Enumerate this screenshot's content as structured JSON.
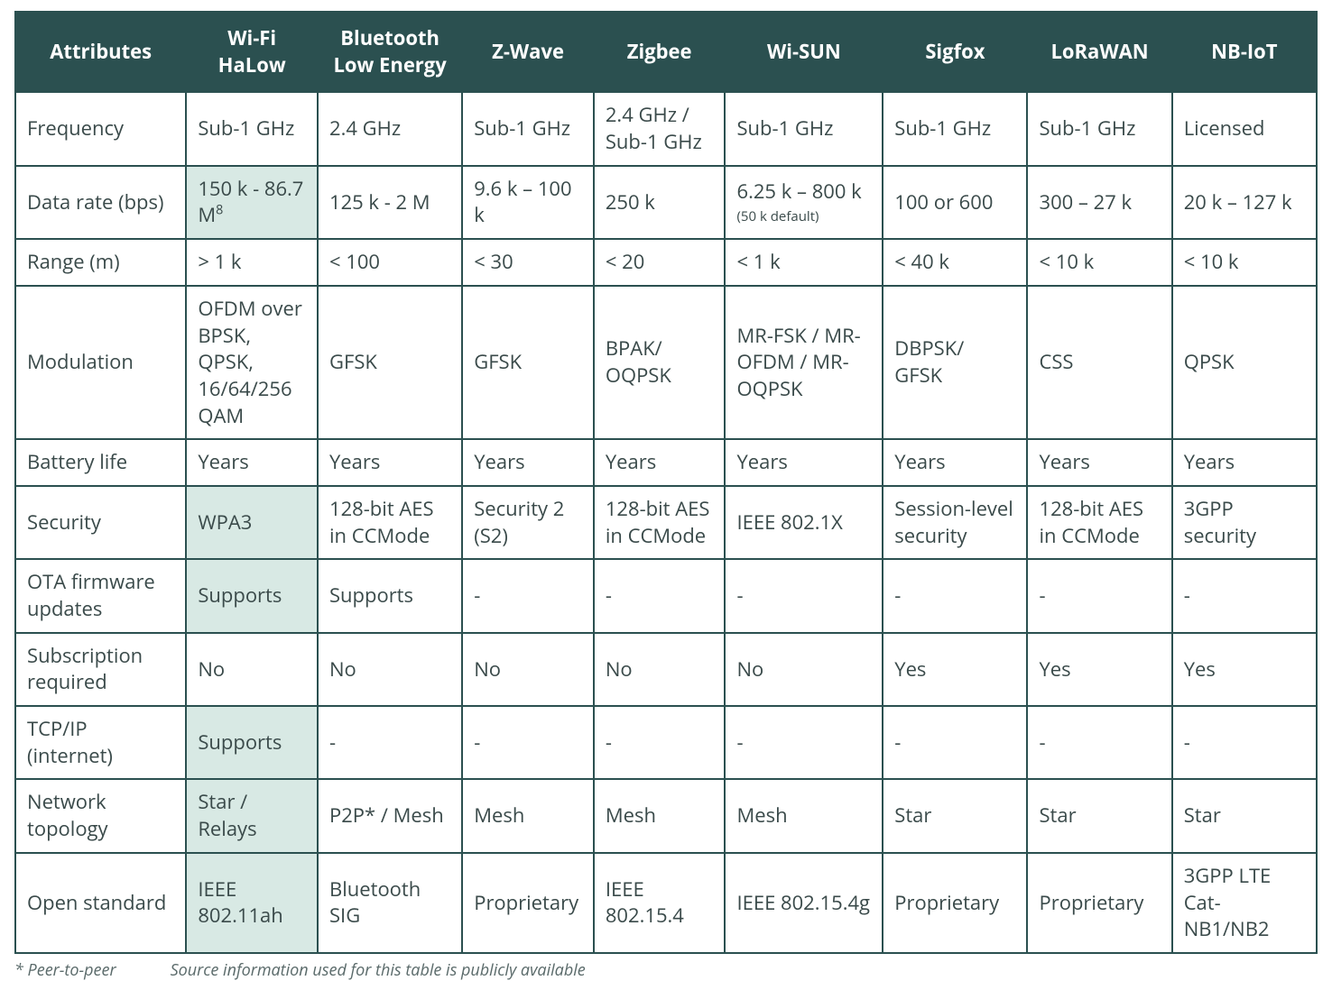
{
  "table": {
    "columns": [
      "Attributes",
      "Wi-Fi HaLow",
      "Bluetooth Low Energy",
      "Z-Wave",
      "Zigbee",
      "Wi-SUN",
      "Sigfox",
      "LoRaWAN",
      "NB-IoT"
    ],
    "column_widths_pct": [
      13,
      10,
      11,
      10,
      10,
      12,
      11,
      11,
      11
    ],
    "header_bg": "#2b5050",
    "header_fg": "#ffffff",
    "border_color": "#2b5050",
    "highlight_bg": "#d8e9e4",
    "body_fg": "#3a4a4a",
    "highlight_column_index": 1,
    "rows": [
      {
        "attr": "Frequency",
        "cells": [
          "Sub-1 GHz",
          "2.4 GHz",
          "Sub-1 GHz",
          "2.4 GHz / Sub-1 GHz",
          "Sub-1 GHz",
          "Sub-1 GHz",
          "Sub-1 GHz",
          "Licensed"
        ],
        "highlight": []
      },
      {
        "attr": "Data rate (bps)",
        "cells": [
          "150 k - 86.7 M",
          "125 k - 2 M",
          "9.6 k – 100 k",
          "250 k",
          "6.25 k – 800 k",
          "100 or 600",
          "300 – 27 k",
          "20 k – 127 k"
        ],
        "cell_sup": {
          "0": "8"
        },
        "cell_sub": {
          "4": "(50 k default)"
        },
        "highlight": [
          0
        ]
      },
      {
        "attr": "Range (m)",
        "cells": [
          "> 1 k",
          "< 100",
          "< 30",
          "< 20",
          "< 1 k",
          "< 40 k",
          "< 10 k",
          "< 10 k"
        ],
        "highlight": []
      },
      {
        "attr": "Modulation",
        "cells": [
          "OFDM over BPSK, QPSK, 16/64/256 QAM",
          "GFSK",
          "GFSK",
          "BPAK/ OQPSK",
          "MR-FSK / MR-OFDM / MR-OQPSK",
          "DBPSK/ GFSK",
          "CSS",
          "QPSK"
        ],
        "highlight": []
      },
      {
        "attr": "Battery life",
        "cells": [
          "Years",
          "Years",
          "Years",
          "Years",
          "Years",
          "Years",
          "Years",
          "Years"
        ],
        "highlight": []
      },
      {
        "attr": "Security",
        "cells": [
          "WPA3",
          "128-bit AES in CCMode",
          "Security 2 (S2)",
          "128-bit AES in CCMode",
          "IEEE 802.1X",
          "Session-level security",
          "128-bit AES in CCMode",
          "3GPP security"
        ],
        "highlight": [
          0
        ]
      },
      {
        "attr": "OTA firmware updates",
        "cells": [
          "Supports",
          "Supports",
          "-",
          "-",
          "-",
          "-",
          "-",
          "-"
        ],
        "highlight": [
          0
        ]
      },
      {
        "attr": "Subscription required",
        "cells": [
          "No",
          "No",
          "No",
          "No",
          "No",
          "Yes",
          "Yes",
          "Yes"
        ],
        "highlight": []
      },
      {
        "attr": "TCP/IP (internet)",
        "cells": [
          "Supports",
          "-",
          "-",
          "-",
          "-",
          "-",
          "-",
          "-"
        ],
        "highlight": [
          0
        ]
      },
      {
        "attr": "Network topology",
        "cells": [
          "Star / Relays",
          "P2P* / Mesh",
          "Mesh",
          "Mesh",
          "Mesh",
          "Star",
          "Star",
          "Star"
        ],
        "highlight": [
          0
        ]
      },
      {
        "attr": "Open standard",
        "cells": [
          "IEEE 802.11ah",
          "Bluetooth SIG",
          "Proprietary",
          "IEEE 802.15.4",
          "IEEE 802.15.4g",
          "Proprietary",
          "Proprietary",
          "3GPP LTE Cat-NB1/NB2"
        ],
        "highlight": [
          0
        ]
      }
    ]
  },
  "footnotes": {
    "left": "* Peer-to-peer",
    "right": "Source information used for this table is publicly available"
  }
}
